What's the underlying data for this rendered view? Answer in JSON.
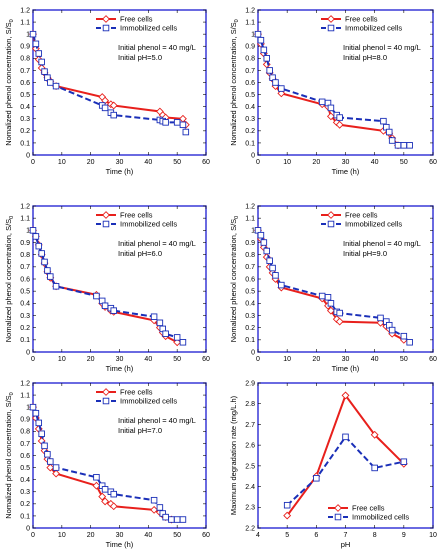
{
  "chart_data": [
    {
      "type": "line",
      "panel": "initial-ph-5",
      "xlabel": "Time (h)",
      "ylabel": "Nomalized phenol concentration, S/S",
      "ylabel_sub": "0",
      "xlim": [
        0,
        60
      ],
      "ylim": [
        0,
        1.2
      ],
      "xticks": [
        0,
        10,
        20,
        30,
        40,
        50,
        60
      ],
      "yticks": [
        0,
        0.1,
        0.2,
        0.3,
        0.4,
        0.5,
        0.6,
        0.7,
        0.8,
        0.9,
        1,
        1.1,
        1.2
      ],
      "annotations": [
        "Initial phenol = 40 mg/L",
        "Initial pH=5.0"
      ],
      "legend_position": "top-center",
      "series": [
        {
          "name": "Free cells",
          "color": "#e8201c",
          "marker": "diamond",
          "dash": false,
          "x": [
            0,
            1,
            2,
            3,
            4,
            5,
            6,
            8,
            24,
            25,
            27,
            28,
            44,
            45,
            46,
            52,
            53
          ],
          "y": [
            1.0,
            0.88,
            0.79,
            0.72,
            0.68,
            0.64,
            0.61,
            0.57,
            0.48,
            0.45,
            0.42,
            0.41,
            0.36,
            0.33,
            0.31,
            0.3,
            0.25
          ]
        },
        {
          "name": "Immobilized cells",
          "color": "#1a2fb8",
          "marker": "square",
          "dash": true,
          "x": [
            0,
            1,
            2,
            3,
            4,
            5,
            6,
            8,
            24,
            25,
            27,
            28,
            44,
            45,
            46,
            50,
            52,
            53
          ],
          "y": [
            1.0,
            0.92,
            0.84,
            0.77,
            0.69,
            0.64,
            0.6,
            0.57,
            0.41,
            0.39,
            0.35,
            0.33,
            0.29,
            0.28,
            0.27,
            0.27,
            0.25,
            0.19
          ]
        }
      ]
    },
    {
      "type": "line",
      "panel": "initial-ph-8",
      "xlabel": "Time (h)",
      "ylabel": "Nomalized phenol concentration, S/S",
      "ylabel_sub": "0",
      "xlim": [
        0,
        60
      ],
      "ylim": [
        0,
        1.2
      ],
      "xticks": [
        0,
        10,
        20,
        30,
        40,
        50,
        60
      ],
      "yticks": [
        0,
        0.1,
        0.2,
        0.3,
        0.4,
        0.5,
        0.6,
        0.7,
        0.8,
        0.9,
        1,
        1.1,
        1.2
      ],
      "annotations": [
        "Initial phenol = 40 mg/L",
        "Initial pH=8.0"
      ],
      "legend_position": "top-center",
      "series": [
        {
          "name": "Free cells",
          "color": "#e8201c",
          "marker": "diamond",
          "dash": false,
          "x": [
            0,
            1,
            2,
            3,
            4,
            5,
            6,
            8,
            22,
            24,
            25,
            27,
            28,
            43,
            45,
            46,
            48
          ],
          "y": [
            1.0,
            0.92,
            0.84,
            0.75,
            0.68,
            0.63,
            0.57,
            0.51,
            0.42,
            0.4,
            0.32,
            0.27,
            0.25,
            0.2,
            0.18,
            0.14,
            0.08
          ]
        },
        {
          "name": "Immobilized cells",
          "color": "#1a2fb8",
          "marker": "square",
          "dash": true,
          "x": [
            0,
            1,
            2,
            3,
            4,
            5,
            6,
            8,
            22,
            24,
            25,
            27,
            28,
            43,
            44,
            45,
            46,
            48,
            50,
            52
          ],
          "y": [
            1.0,
            0.95,
            0.87,
            0.8,
            0.7,
            0.64,
            0.6,
            0.55,
            0.44,
            0.43,
            0.39,
            0.33,
            0.31,
            0.28,
            0.23,
            0.19,
            0.12,
            0.08,
            0.08,
            0.08
          ]
        }
      ]
    },
    {
      "type": "line",
      "panel": "initial-ph-6",
      "xlabel": "Time (h)",
      "ylabel": "Nomalized phenol concentration, S/S",
      "ylabel_sub": "0",
      "xlim": [
        0,
        60
      ],
      "ylim": [
        0,
        1.2
      ],
      "xticks": [
        0,
        10,
        20,
        30,
        40,
        50,
        60
      ],
      "yticks": [
        0,
        0.1,
        0.2,
        0.3,
        0.4,
        0.5,
        0.6,
        0.7,
        0.8,
        0.9,
        1,
        1.1,
        1.2
      ],
      "annotations": [
        "Initial phenol = 40 mg/L",
        "Initial pH=6.0"
      ],
      "legend_position": "top-center",
      "series": [
        {
          "name": "Free cells",
          "color": "#e8201c",
          "marker": "diamond",
          "dash": false,
          "x": [
            0,
            1,
            2,
            3,
            4,
            5,
            6,
            8,
            22,
            24,
            25,
            27,
            28,
            42,
            44,
            45,
            46,
            50
          ],
          "y": [
            1.0,
            0.95,
            0.88,
            0.8,
            0.73,
            0.66,
            0.61,
            0.54,
            0.47,
            0.4,
            0.37,
            0.34,
            0.33,
            0.26,
            0.2,
            0.16,
            0.13,
            0.08
          ]
        },
        {
          "name": "Immobilized cells",
          "color": "#1a2fb8",
          "marker": "square",
          "dash": true,
          "x": [
            0,
            1,
            2,
            3,
            4,
            5,
            6,
            8,
            22,
            24,
            25,
            27,
            28,
            42,
            44,
            45,
            46,
            50,
            52
          ],
          "y": [
            1.0,
            0.95,
            0.87,
            0.81,
            0.74,
            0.67,
            0.62,
            0.54,
            0.46,
            0.42,
            0.38,
            0.36,
            0.34,
            0.29,
            0.24,
            0.19,
            0.15,
            0.12,
            0.08
          ]
        }
      ]
    },
    {
      "type": "line",
      "panel": "initial-ph-9",
      "xlabel": "Time (h)",
      "ylabel": "Nomalized phenol concentration, S/S",
      "ylabel_sub": "0",
      "xlim": [
        0,
        60
      ],
      "ylim": [
        0,
        1.2
      ],
      "xticks": [
        0,
        10,
        20,
        30,
        40,
        50,
        60
      ],
      "yticks": [
        0,
        0.1,
        0.2,
        0.3,
        0.4,
        0.5,
        0.6,
        0.7,
        0.8,
        0.9,
        1,
        1.1,
        1.2
      ],
      "annotations": [
        "Initial phenol = 40 mg/L",
        "Initial pH=9.0"
      ],
      "legend_position": "top-center",
      "series": [
        {
          "name": "Free cells",
          "color": "#e8201c",
          "marker": "diamond",
          "dash": false,
          "x": [
            0,
            1,
            2,
            3,
            4,
            5,
            6,
            8,
            22,
            24,
            25,
            27,
            28,
            42,
            44,
            45,
            46,
            50
          ],
          "y": [
            1.0,
            0.93,
            0.86,
            0.78,
            0.7,
            0.65,
            0.6,
            0.53,
            0.44,
            0.38,
            0.34,
            0.27,
            0.25,
            0.24,
            0.21,
            0.19,
            0.15,
            0.1
          ]
        },
        {
          "name": "Immobilized cells",
          "color": "#1a2fb8",
          "marker": "square",
          "dash": true,
          "x": [
            0,
            1,
            2,
            3,
            4,
            5,
            6,
            8,
            22,
            24,
            25,
            27,
            28,
            42,
            44,
            45,
            46,
            50,
            52
          ],
          "y": [
            1.0,
            0.96,
            0.9,
            0.83,
            0.75,
            0.69,
            0.63,
            0.55,
            0.46,
            0.45,
            0.4,
            0.33,
            0.32,
            0.28,
            0.25,
            0.22,
            0.18,
            0.13,
            0.08
          ]
        }
      ]
    },
    {
      "type": "line",
      "panel": "initial-ph-7",
      "xlabel": "Time (h)",
      "ylabel": "Nomalized phenol concentration, S/S",
      "ylabel_sub": "0",
      "xlim": [
        0,
        60
      ],
      "ylim": [
        0,
        1.2
      ],
      "xticks": [
        0,
        10,
        20,
        30,
        40,
        50,
        60
      ],
      "yticks": [
        0,
        0.1,
        0.2,
        0.3,
        0.4,
        0.5,
        0.6,
        0.7,
        0.8,
        0.9,
        1,
        1.1,
        1.2
      ],
      "annotations": [
        "Initial phenol = 40 mg/L",
        "Initial pH=7.0"
      ],
      "legend_position": "top-center",
      "series": [
        {
          "name": "Free cells",
          "color": "#e8201c",
          "marker": "diamond",
          "dash": false,
          "x": [
            0,
            1,
            2,
            3,
            4,
            5,
            6,
            8,
            22,
            24,
            25,
            27,
            28,
            42,
            44,
            45,
            46,
            48
          ],
          "y": [
            1.0,
            0.91,
            0.82,
            0.72,
            0.64,
            0.57,
            0.5,
            0.45,
            0.35,
            0.26,
            0.22,
            0.2,
            0.18,
            0.15,
            0.13,
            0.11,
            0.09,
            0.07
          ]
        },
        {
          "name": "Immobilized cells",
          "color": "#1a2fb8",
          "marker": "square",
          "dash": true,
          "x": [
            0,
            1,
            2,
            3,
            4,
            5,
            6,
            8,
            22,
            24,
            25,
            27,
            28,
            42,
            44,
            45,
            46,
            48,
            50,
            52
          ],
          "y": [
            1.0,
            0.95,
            0.87,
            0.78,
            0.68,
            0.61,
            0.55,
            0.5,
            0.42,
            0.35,
            0.32,
            0.3,
            0.28,
            0.23,
            0.17,
            0.12,
            0.09,
            0.07,
            0.07,
            0.07
          ]
        }
      ]
    },
    {
      "type": "line",
      "panel": "max-rate-vs-ph",
      "xlabel": "pH",
      "ylabel": "Maximum degradation rate (mg/L.h)",
      "xlim": [
        4,
        10
      ],
      "ylim": [
        2.2,
        2.9
      ],
      "xticks": [
        4,
        5,
        6,
        7,
        8,
        9,
        10
      ],
      "yticks": [
        2.2,
        2.3,
        2.4,
        2.5,
        2.6,
        2.7,
        2.8,
        2.9
      ],
      "legend_position": "bottom-center",
      "series": [
        {
          "name": "Free cells",
          "color": "#e8201c",
          "marker": "diamond",
          "dash": false,
          "x": [
            5,
            6,
            7,
            8,
            9
          ],
          "y": [
            2.26,
            2.45,
            2.84,
            2.65,
            2.51
          ]
        },
        {
          "name": "Immobilized cells",
          "color": "#1a2fb8",
          "marker": "square",
          "dash": true,
          "x": [
            5,
            6,
            7,
            8,
            9
          ],
          "y": [
            2.31,
            2.44,
            2.64,
            2.49,
            2.52
          ]
        }
      ]
    }
  ]
}
